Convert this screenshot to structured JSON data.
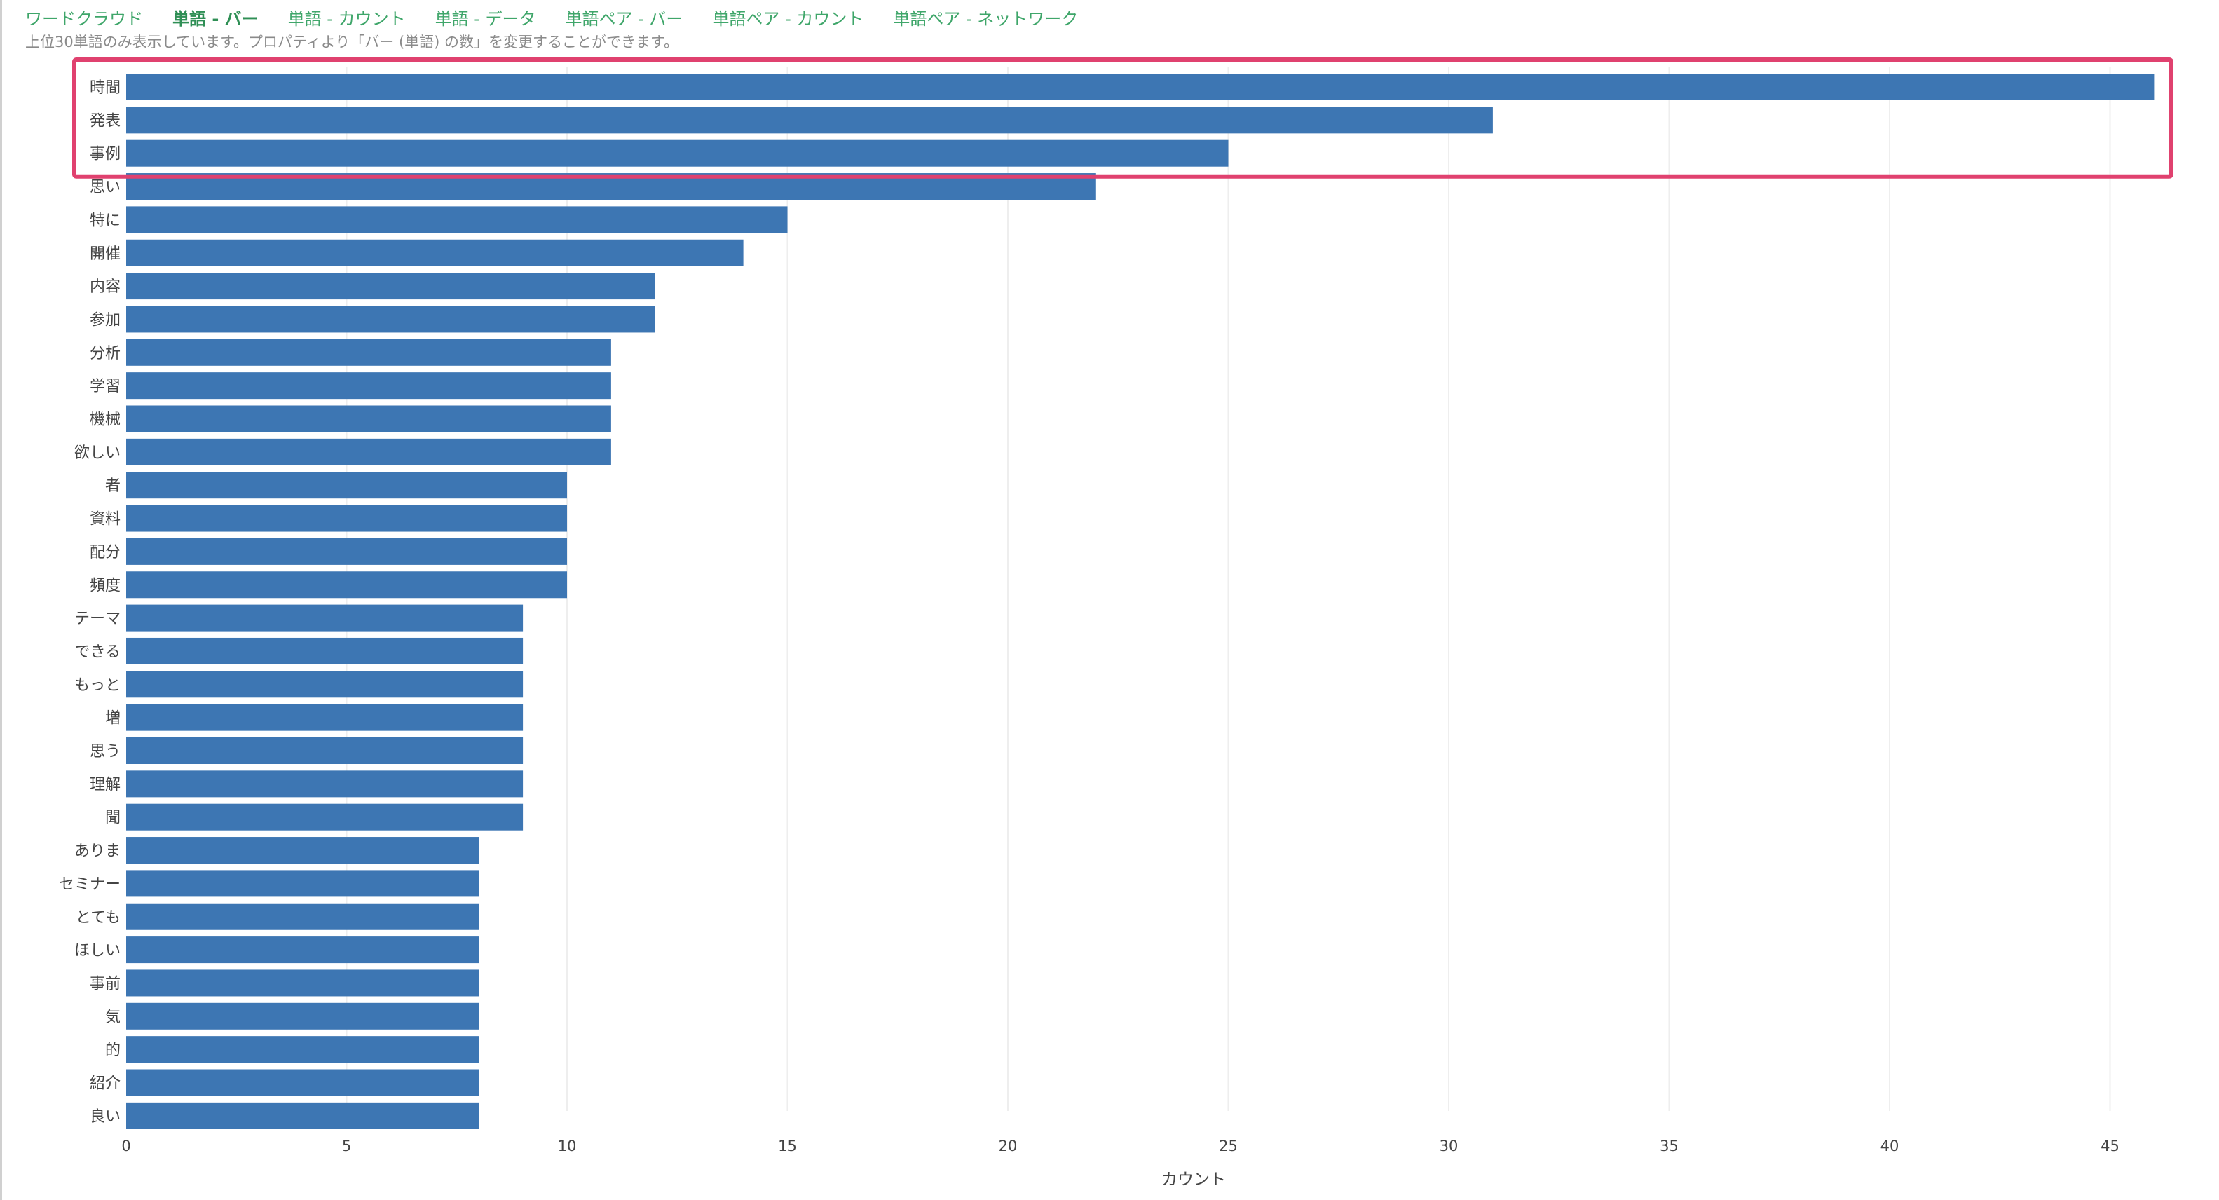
{
  "tabs": [
    {
      "label": "ワードクラウド",
      "active": false
    },
    {
      "label": "単語 - バー",
      "active": true
    },
    {
      "label": "単語 - カウント",
      "active": false
    },
    {
      "label": "単語 - データ",
      "active": false
    },
    {
      "label": "単語ペア - バー",
      "active": false
    },
    {
      "label": "単語ペア - カウント",
      "active": false
    },
    {
      "label": "単語ペア - ネットワーク",
      "active": false
    }
  ],
  "subtitle": "上位30単語のみ表示しています。プロパティより「バー (単語) の数」を変更することができます。",
  "colors": {
    "bar": "#3d76b3",
    "tab": "#3fa66a",
    "highlight": "#e0416f",
    "grid": "#eeeeee"
  },
  "chart_data": {
    "type": "bar",
    "orientation": "horizontal",
    "categories": [
      "時間",
      "発表",
      "事例",
      "思い",
      "特に",
      "開催",
      "内容",
      "参加",
      "分析",
      "学習",
      "機械",
      "欲しい",
      "者",
      "資料",
      "配分",
      "頻度",
      "テーマ",
      "できる",
      "もっと",
      "増",
      "思う",
      "理解",
      "聞",
      "ありま",
      "セミナー",
      "とても",
      "ほしい",
      "事前",
      "気",
      "的",
      "紹介",
      "良い"
    ],
    "values": [
      46,
      31,
      25,
      22,
      15,
      14,
      12,
      12,
      11,
      11,
      11,
      11,
      10,
      10,
      10,
      10,
      9,
      9,
      9,
      9,
      9,
      9,
      9,
      8,
      8,
      8,
      8,
      8,
      8,
      8,
      8,
      8
    ],
    "xlabel": "カウント",
    "xlim": [
      0,
      47
    ],
    "xticks": [
      0,
      5,
      10,
      15,
      20,
      25,
      30,
      35,
      40,
      45
    ],
    "grid": true,
    "highlighted_categories": [
      "時間",
      "発表",
      "事例"
    ]
  }
}
